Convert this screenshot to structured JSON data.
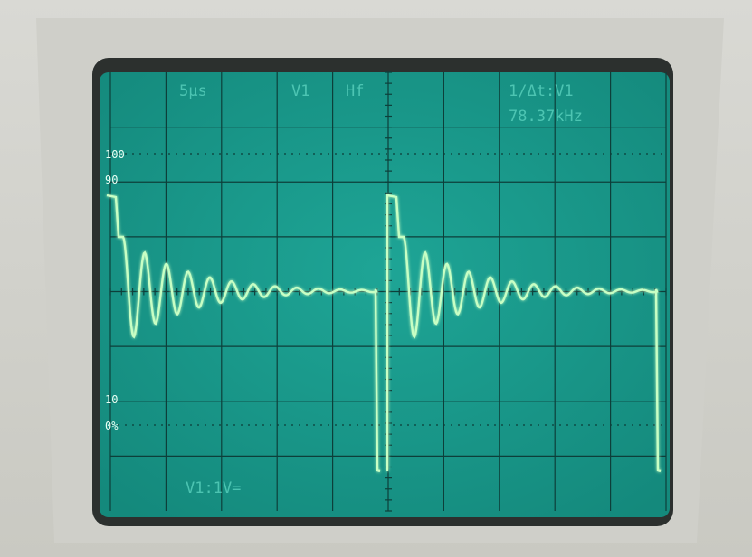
{
  "screen": {
    "timebase": "5µs",
    "channel": "V1",
    "filter": "Hf",
    "measure_mode": "1/Δt:V1",
    "measure_value": "78.37kHz",
    "level_100": "100",
    "level_90": "90",
    "level_10": "10",
    "level_0": "0%",
    "channel_scale": "V1:1V="
  }
}
